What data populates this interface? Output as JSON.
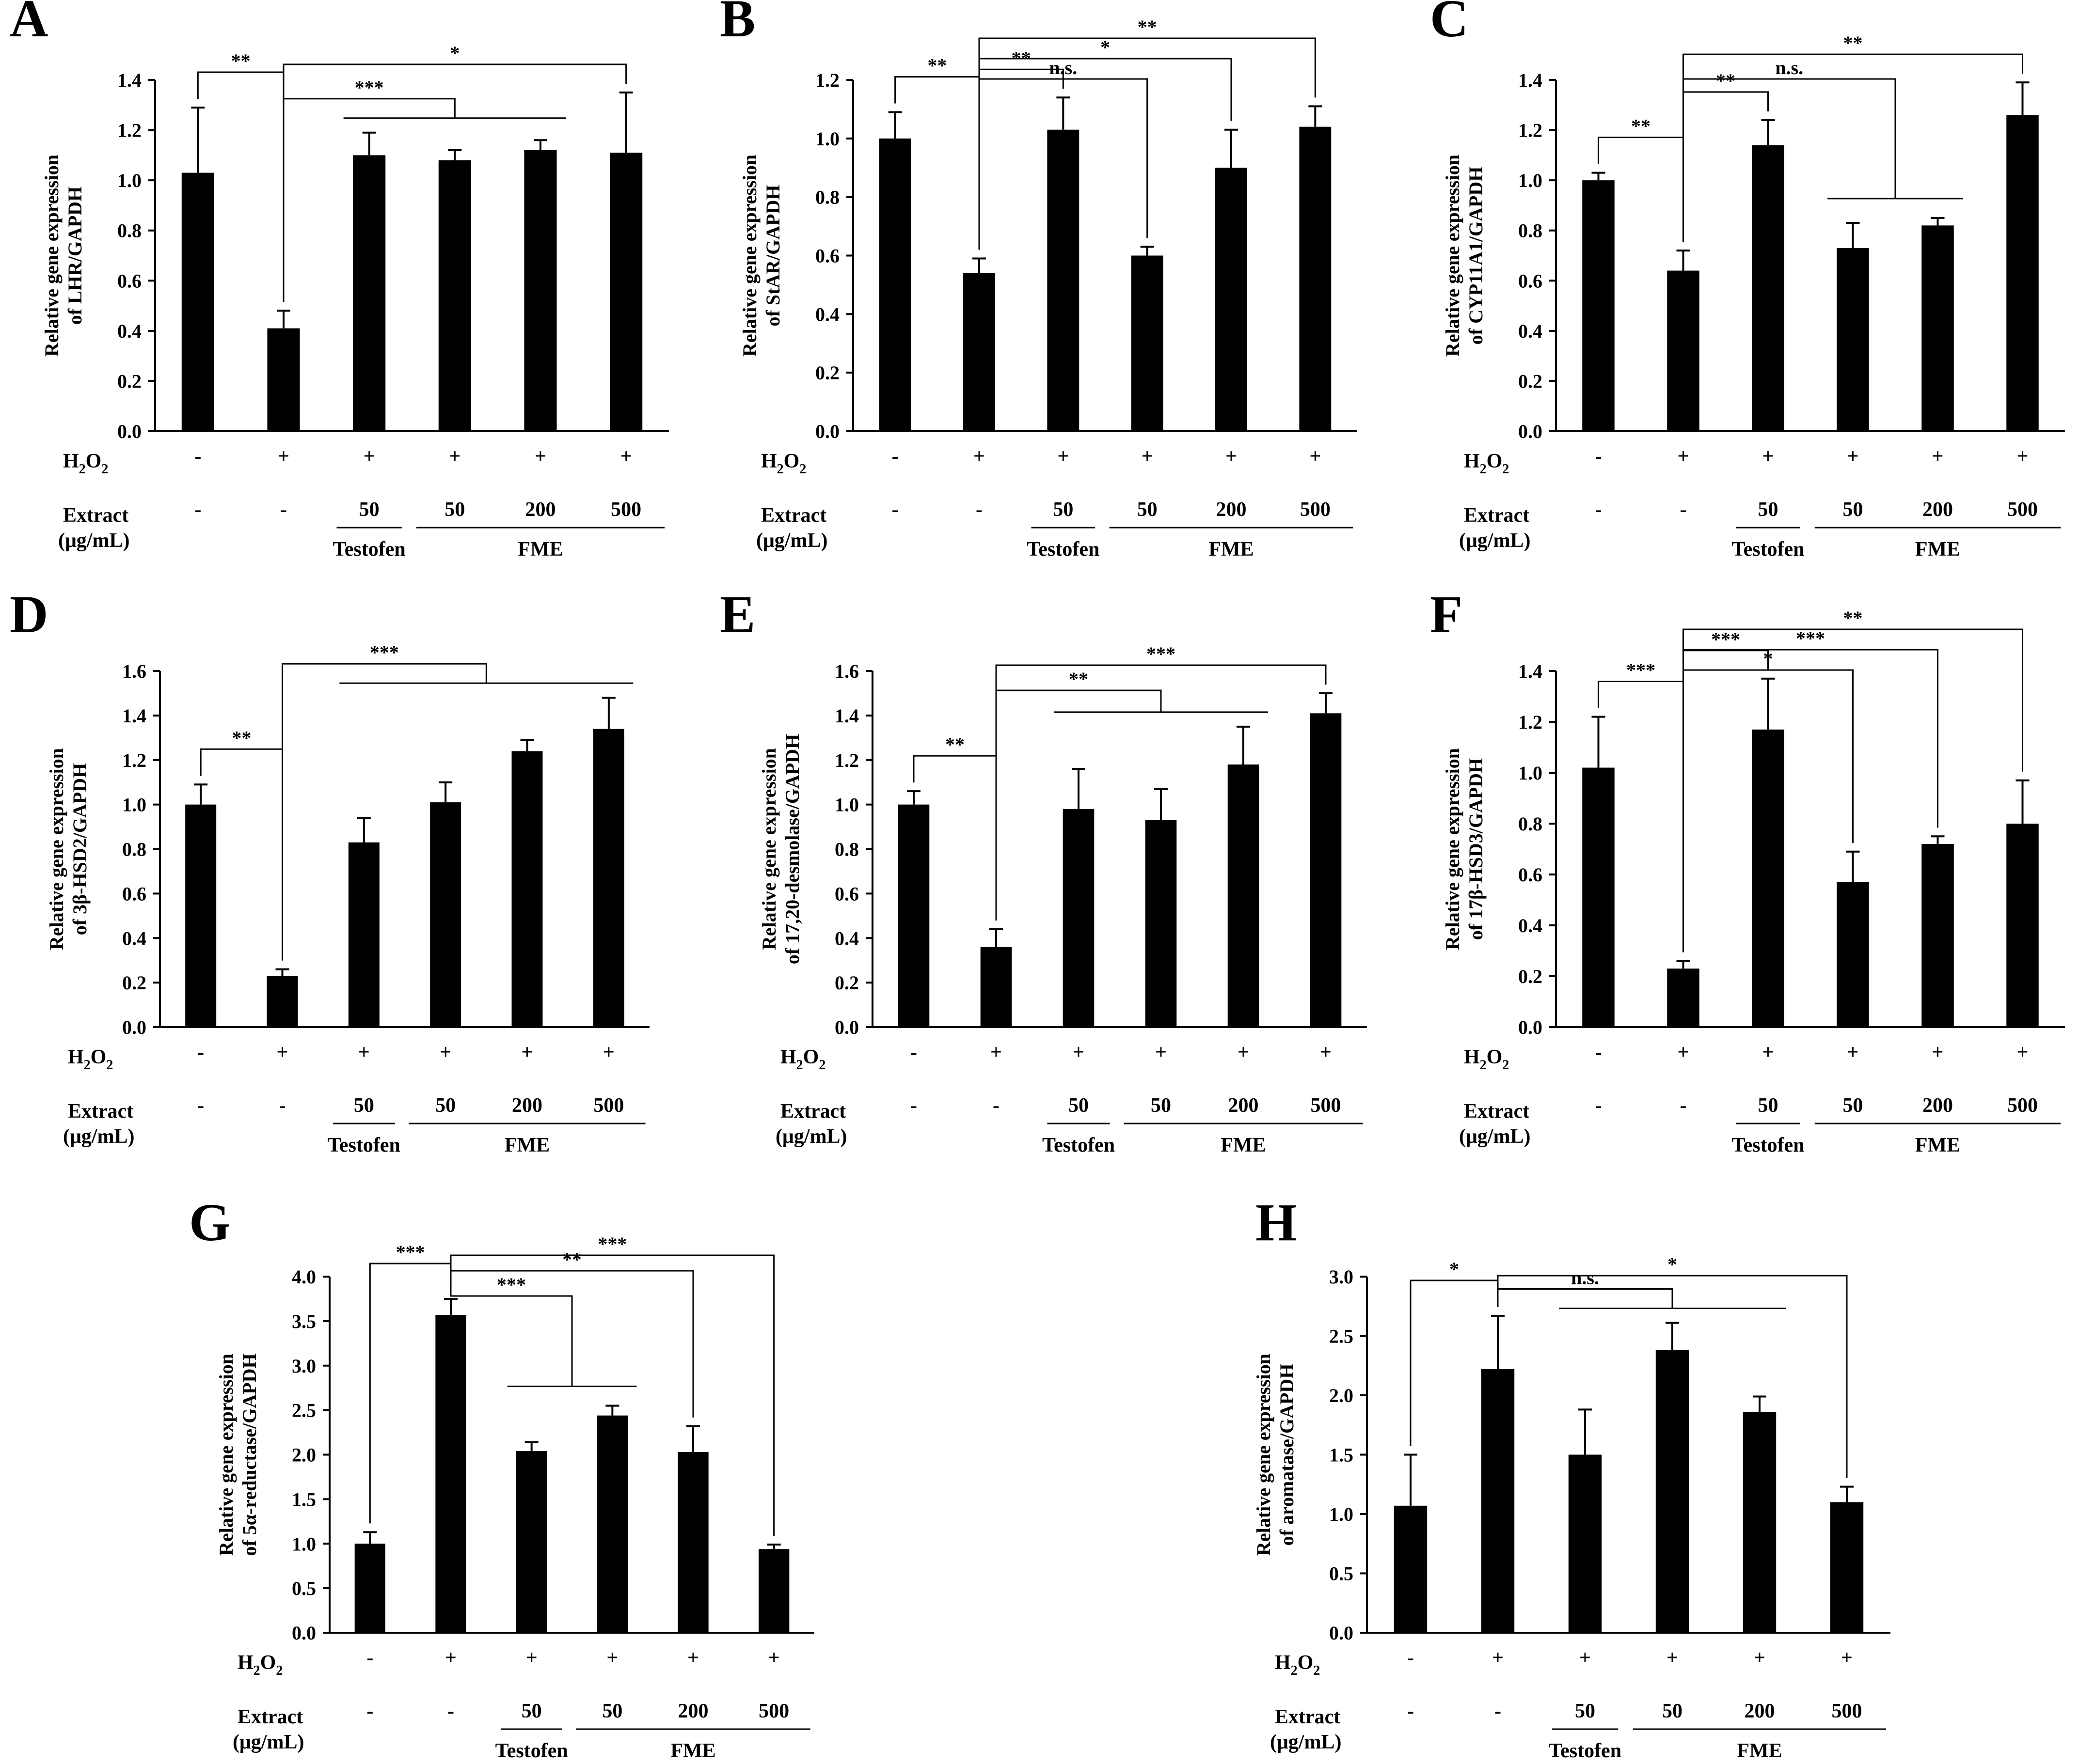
{
  "figure": {
    "h2o2_label": "H",
    "h2o2_sub": "2",
    "h2o2_mid": "O",
    "extract_label_1": "Extract",
    "extract_label_2": "(μg/mL)",
    "h2o2_signs": [
      "-",
      "+",
      "+",
      "+",
      "+",
      "+"
    ],
    "extract_values": [
      "-",
      "-",
      "50",
      "50",
      "200",
      "500"
    ],
    "group_testofen": "Testofen",
    "group_fme": "FME"
  },
  "chart_data": [
    {
      "panel": "A",
      "type": "bar",
      "ylabel": [
        "Relative gene expression",
        "of LHR/GAPDH"
      ],
      "ylim": [
        0,
        1.4
      ],
      "yticks": [
        "0.0",
        "0.2",
        "0.4",
        "0.6",
        "0.8",
        "1.0",
        "1.2",
        "1.4"
      ],
      "values": [
        1.03,
        0.41,
        1.1,
        1.08,
        1.12,
        1.11
      ],
      "errors": [
        0.26,
        0.07,
        0.09,
        0.04,
        0.04,
        0.24
      ],
      "brackets": [
        {
          "type": "pair",
          "a": 0,
          "b": 1,
          "label": "**"
        },
        {
          "type": "group",
          "a": 1,
          "b0": 2,
          "b1": 4,
          "label": "***"
        },
        {
          "type": "pair",
          "a": 1,
          "b": 5,
          "label": "*"
        }
      ]
    },
    {
      "panel": "B",
      "type": "bar",
      "ylabel": [
        "Relative gene expression",
        "of StAR/GAPDH"
      ],
      "ylim": [
        0,
        1.2
      ],
      "yticks": [
        "0.0",
        "0.2",
        "0.4",
        "0.6",
        "0.8",
        "1.0",
        "1.2"
      ],
      "values": [
        1.0,
        0.54,
        1.03,
        0.6,
        0.9,
        1.04
      ],
      "errors": [
        0.09,
        0.05,
        0.11,
        0.03,
        0.13,
        0.07
      ],
      "brackets": [
        {
          "type": "pair",
          "a": 0,
          "b": 1,
          "label": "**"
        },
        {
          "type": "pair",
          "a": 1,
          "b": 2,
          "label": "**"
        },
        {
          "type": "pair",
          "a": 1,
          "b": 3,
          "label": "n.s."
        },
        {
          "type": "pair",
          "a": 1,
          "b": 4,
          "label": "*"
        },
        {
          "type": "pair",
          "a": 1,
          "b": 5,
          "label": "**"
        }
      ]
    },
    {
      "panel": "C",
      "type": "bar",
      "ylabel": [
        "Relative gene expression",
        "of CYP11A1/GAPDH"
      ],
      "ylim": [
        0,
        1.4
      ],
      "yticks": [
        "0.0",
        "0.2",
        "0.4",
        "0.6",
        "0.8",
        "1.0",
        "1.2",
        "1.4"
      ],
      "values": [
        1.0,
        0.64,
        1.14,
        0.73,
        0.82,
        1.26
      ],
      "errors": [
        0.03,
        0.08,
        0.1,
        0.1,
        0.03,
        0.13
      ],
      "brackets": [
        {
          "type": "pair",
          "a": 0,
          "b": 1,
          "label": "**"
        },
        {
          "type": "pair",
          "a": 1,
          "b": 2,
          "label": "**"
        },
        {
          "type": "group",
          "a": 1,
          "b0": 3,
          "b1": 4,
          "label": "n.s.",
          "below": true
        },
        {
          "type": "pair",
          "a": 1,
          "b": 5,
          "label": "**"
        }
      ]
    },
    {
      "panel": "D",
      "type": "bar",
      "ylabel": [
        "Relative gene expression",
        "of 3β-HSD2/GAPDH"
      ],
      "ylim": [
        0,
        1.6
      ],
      "yticks": [
        "0.0",
        "0.2",
        "0.4",
        "0.6",
        "0.8",
        "1.0",
        "1.2",
        "1.4",
        "1.6"
      ],
      "values": [
        1.0,
        0.23,
        0.83,
        1.01,
        1.24,
        1.34
      ],
      "errors": [
        0.09,
        0.03,
        0.11,
        0.09,
        0.05,
        0.14
      ],
      "brackets": [
        {
          "type": "pair",
          "a": 0,
          "b": 1,
          "label": "**"
        },
        {
          "type": "group",
          "a": 1,
          "b0": 2,
          "b1": 5,
          "label": "***"
        }
      ]
    },
    {
      "panel": "E",
      "type": "bar",
      "ylabel": [
        "Relative gene expression",
        "of 17,20-desmolase/GAPDH"
      ],
      "ylim": [
        0,
        1.6
      ],
      "yticks": [
        "0.0",
        "0.2",
        "0.4",
        "0.6",
        "0.8",
        "1.0",
        "1.2",
        "1.4",
        "1.6"
      ],
      "values": [
        1.0,
        0.36,
        0.98,
        0.93,
        1.18,
        1.41
      ],
      "errors": [
        0.06,
        0.08,
        0.18,
        0.14,
        0.17,
        0.09
      ],
      "brackets": [
        {
          "type": "pair",
          "a": 0,
          "b": 1,
          "label": "**"
        },
        {
          "type": "group",
          "a": 1,
          "b0": 2,
          "b1": 4,
          "label": "**"
        },
        {
          "type": "pair",
          "a": 1,
          "b": 5,
          "label": "***"
        }
      ]
    },
    {
      "panel": "F",
      "type": "bar",
      "ylabel": [
        "Relative gene expression",
        "of 17β-HSD3/GAPDH"
      ],
      "ylim": [
        0,
        1.4
      ],
      "yticks": [
        "0.0",
        "0.2",
        "0.4",
        "0.6",
        "0.8",
        "1.0",
        "1.2",
        "1.4"
      ],
      "values": [
        1.02,
        0.23,
        1.17,
        0.57,
        0.72,
        0.8
      ],
      "errors": [
        0.2,
        0.03,
        0.2,
        0.12,
        0.03,
        0.17
      ],
      "brackets": [
        {
          "type": "pair",
          "a": 0,
          "b": 1,
          "label": "***"
        },
        {
          "type": "pair",
          "a": 1,
          "b": 2,
          "label": "***"
        },
        {
          "type": "pair",
          "a": 1,
          "b": 3,
          "label": "*"
        },
        {
          "type": "pair",
          "a": 1,
          "b": 4,
          "label": "***"
        },
        {
          "type": "pair",
          "a": 1,
          "b": 5,
          "label": "**"
        }
      ]
    },
    {
      "panel": "G",
      "type": "bar",
      "ylabel": [
        "Relative gene expression",
        "of 5α-reductase/GAPDH"
      ],
      "ylim": [
        0,
        4.0
      ],
      "yticks": [
        "0.0",
        "0.5",
        "1.0",
        "1.5",
        "2.0",
        "2.5",
        "3.0",
        "3.5",
        "4.0"
      ],
      "values": [
        1.0,
        3.57,
        2.04,
        2.44,
        2.03,
        0.94
      ],
      "errors": [
        0.13,
        0.18,
        0.1,
        0.11,
        0.29,
        0.05
      ],
      "brackets": [
        {
          "type": "pair",
          "a": 0,
          "b": 1,
          "label": "***"
        },
        {
          "type": "group",
          "a": 1,
          "b0": 2,
          "b1": 3,
          "label": "***",
          "below": true
        },
        {
          "type": "pair",
          "a": 1,
          "b": 4,
          "label": "**"
        },
        {
          "type": "pair",
          "a": 1,
          "b": 5,
          "label": "***"
        }
      ]
    },
    {
      "panel": "H",
      "type": "bar",
      "ylabel": [
        "Relative gene expression",
        "of aromatase/GAPDH"
      ],
      "ylim": [
        0,
        3.0
      ],
      "yticks": [
        "0.0",
        "0.5",
        "1.0",
        "1.5",
        "2.0",
        "2.5",
        "3.0"
      ],
      "values": [
        1.07,
        2.22,
        1.5,
        2.38,
        1.86,
        1.1
      ],
      "errors": [
        0.43,
        0.45,
        0.38,
        0.23,
        0.13,
        0.13
      ],
      "brackets": [
        {
          "type": "pair",
          "a": 0,
          "b": 1,
          "label": "*"
        },
        {
          "type": "group",
          "a": 1,
          "b0": 2,
          "b1": 4,
          "label": "n.s."
        },
        {
          "type": "pair",
          "a": 1,
          "b": 5,
          "label": "*"
        }
      ]
    }
  ]
}
